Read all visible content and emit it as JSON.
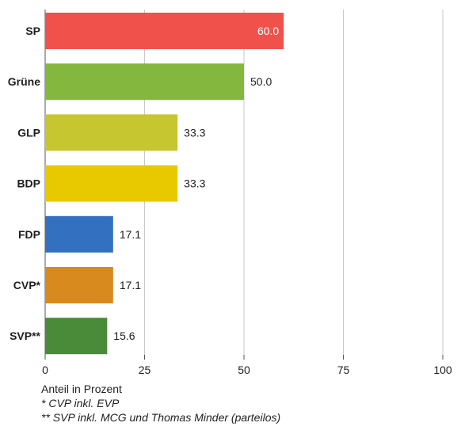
{
  "chart_data": {
    "type": "bar",
    "orientation": "horizontal",
    "categories": [
      "SP",
      "Grüne",
      "GLP",
      "BDP",
      "FDP",
      "CVP*",
      "SVP**"
    ],
    "values": [
      60.0,
      50.0,
      33.3,
      33.3,
      17.1,
      17.1,
      15.6
    ],
    "value_labels": [
      "60.0",
      "50.0",
      "33.3",
      "33.3",
      "17.1",
      "17.1",
      "15.6"
    ],
    "colors": [
      "#f0524b",
      "#84b73e",
      "#c5c630",
      "#e8c900",
      "#3370bf",
      "#d98a1e",
      "#4a8b3a"
    ],
    "xlabel": "Anteil in Prozent",
    "ylabel": "",
    "xlim": [
      0,
      100
    ],
    "x_ticks": [
      0,
      25,
      50,
      75,
      100
    ],
    "x_tick_labels": [
      "0",
      "25",
      "50",
      "75",
      "100"
    ],
    "grid": true,
    "legend": "none",
    "footnotes": [
      "* CVP inkl. EVP",
      "** SVP inkl. MCG und Thomas Minder (parteilos)"
    ]
  }
}
